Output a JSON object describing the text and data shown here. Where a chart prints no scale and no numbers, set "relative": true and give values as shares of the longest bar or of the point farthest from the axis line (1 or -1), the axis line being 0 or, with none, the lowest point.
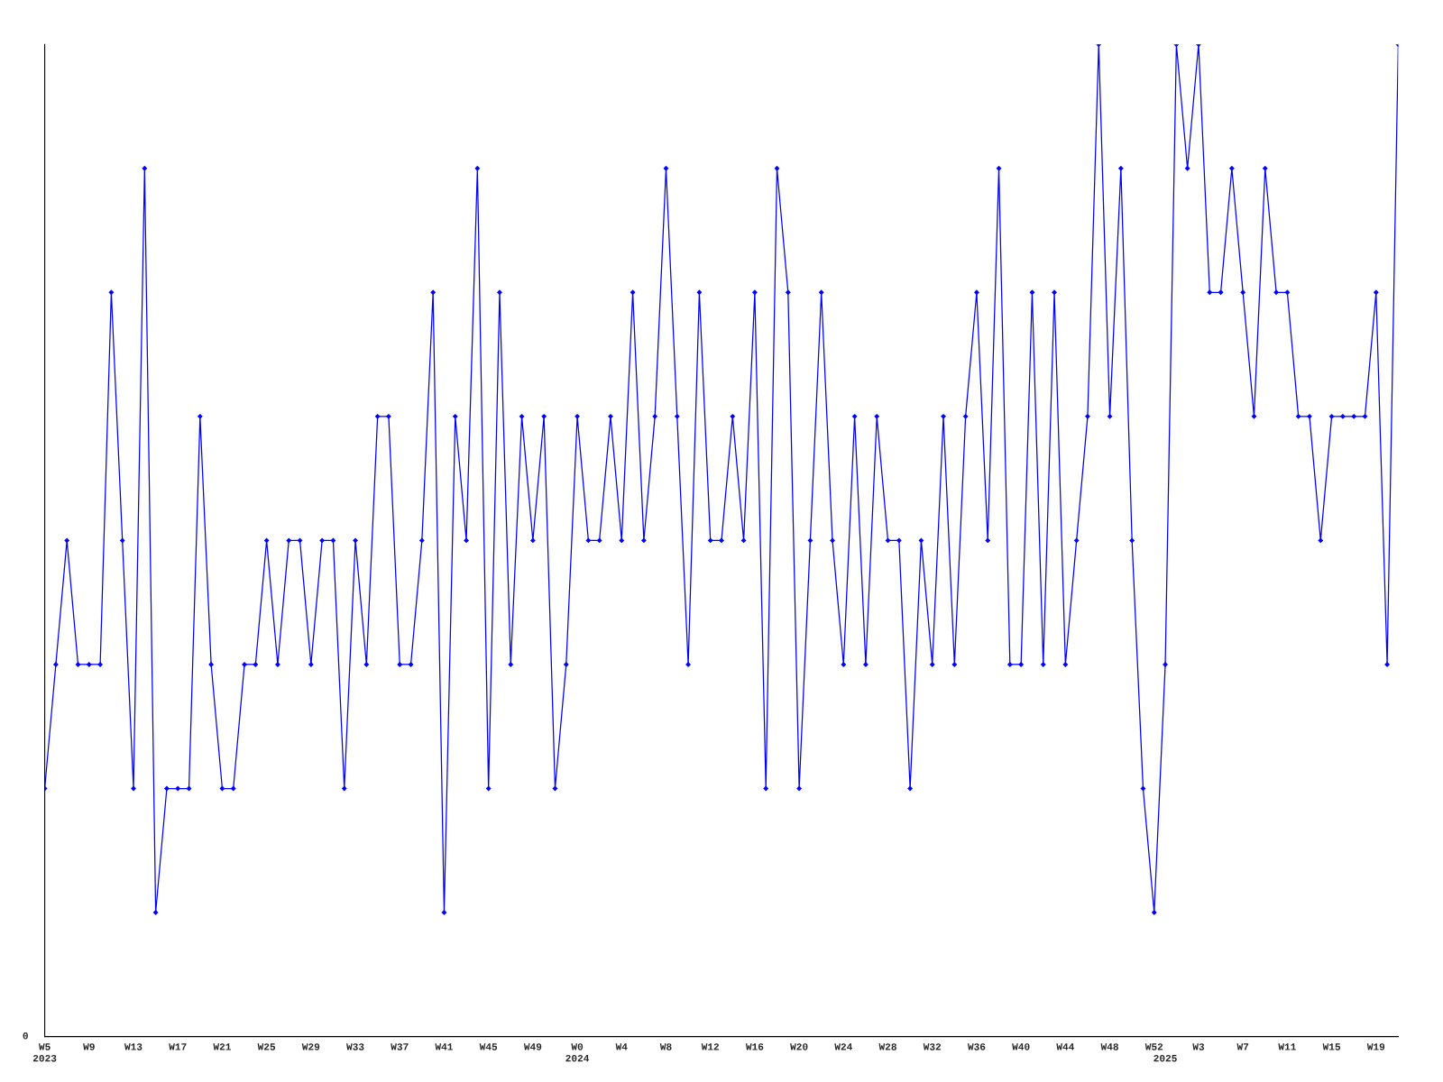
{
  "chart_data": {
    "type": "line",
    "relative": true,
    "categories": [
      "W5\n2023",
      null,
      null,
      null,
      "W9",
      null,
      null,
      null,
      "W13",
      null,
      null,
      null,
      "W17",
      null,
      null,
      null,
      "W21",
      null,
      null,
      null,
      "W25",
      null,
      null,
      null,
      "W29",
      null,
      null,
      null,
      "W33",
      null,
      null,
      null,
      "W37",
      null,
      null,
      null,
      "W41",
      null,
      null,
      null,
      "W45",
      null,
      null,
      null,
      "W49",
      null,
      null,
      null,
      "W0\n2024",
      null,
      null,
      null,
      "W4",
      null,
      null,
      null,
      "W8",
      null,
      null,
      null,
      "W12",
      null,
      null,
      null,
      "W16",
      null,
      null,
      null,
      "W20",
      null,
      null,
      null,
      "W24",
      null,
      null,
      null,
      "W28",
      null,
      null,
      null,
      "W32",
      null,
      null,
      null,
      "W36",
      null,
      null,
      null,
      "W40",
      null,
      null,
      null,
      "W44",
      null,
      null,
      null,
      "W48",
      null,
      null,
      null,
      "W52",
      "\n2025",
      null,
      null,
      "W3",
      null,
      null,
      null,
      "W7",
      null,
      null,
      null,
      "W11",
      null,
      null,
      null,
      "W15",
      null,
      null,
      null,
      "W19",
      null,
      null
    ],
    "series": [
      {
        "color": "#0000ff",
        "values": [
          0.25,
          0.375,
          0.5,
          0.375,
          0.375,
          0.375,
          0.75,
          0.5,
          0.25,
          0.875,
          0.125,
          0.25,
          0.25,
          0.25,
          0.625,
          0.375,
          0.25,
          0.25,
          0.375,
          0.375,
          0.5,
          0.375,
          0.5,
          0.5,
          0.375,
          0.5,
          0.5,
          0.25,
          0.5,
          0.375,
          0.625,
          0.625,
          0.375,
          0.375,
          0.5,
          0.75,
          0.125,
          0.625,
          0.5,
          0.875,
          0.25,
          0.75,
          0.375,
          0.625,
          0.5,
          0.625,
          0.25,
          0.375,
          0.625,
          0.5,
          0.5,
          0.625,
          0.5,
          0.75,
          0.5,
          0.625,
          0.875,
          0.625,
          0.375,
          0.75,
          0.5,
          0.5,
          0.625,
          0.5,
          0.75,
          0.25,
          0.875,
          0.75,
          0.25,
          0.5,
          0.75,
          0.5,
          0.375,
          0.625,
          0.375,
          0.625,
          0.5,
          0.5,
          0.25,
          0.5,
          0.375,
          0.625,
          0.375,
          0.625,
          0.75,
          0.5,
          0.875,
          0.375,
          0.375,
          0.75,
          0.375,
          0.75,
          0.375,
          0.5,
          0.625,
          1,
          0.625,
          0.875,
          0.5,
          0.25,
          0.125,
          0.375,
          1,
          0.875,
          1,
          0.75,
          0.75,
          0.875,
          0.75,
          0.625,
          0.875,
          0.75,
          0.75,
          0.625,
          0.625,
          0.5,
          0.625,
          0.625,
          0.625,
          0.625,
          0.75,
          0.375,
          1
        ]
      }
    ],
    "marker": "diamond",
    "line_style": "solid",
    "grid": false,
    "legend": false,
    "annotations": [
      "0"
    ]
  }
}
